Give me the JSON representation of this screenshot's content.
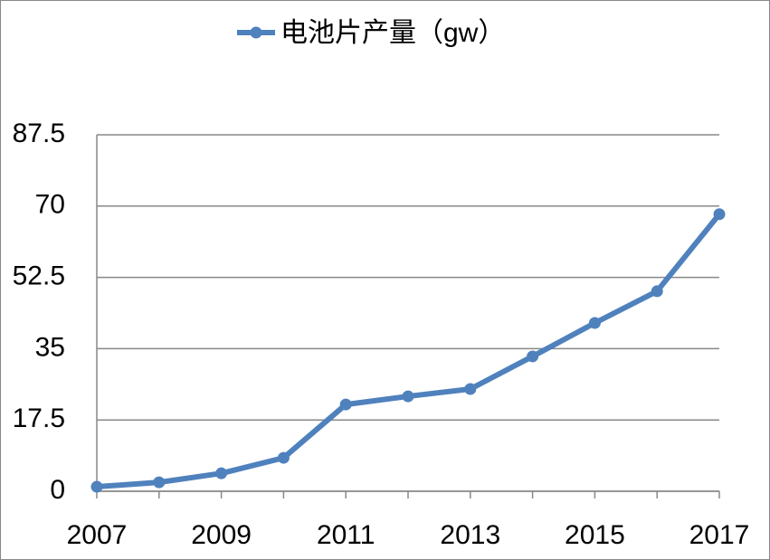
{
  "chart_data": {
    "type": "line",
    "categories": [
      "2007",
      null,
      "2009",
      null,
      "2011",
      null,
      "2013",
      null,
      "2015",
      null,
      "2017"
    ],
    "series": [
      {
        "name": "电池片产量（gw）",
        "color": "#4f81bd",
        "values": [
          1.1,
          2.2,
          4.4,
          8.2,
          21.3,
          23.3,
          25.1,
          33.1,
          41.3,
          49.1,
          68.0
        ]
      }
    ],
    "ylim": [
      0,
      87.5
    ],
    "yticks": [
      0,
      17.5,
      35,
      52.5,
      70,
      87.5
    ],
    "grid": true,
    "legend": "top"
  }
}
